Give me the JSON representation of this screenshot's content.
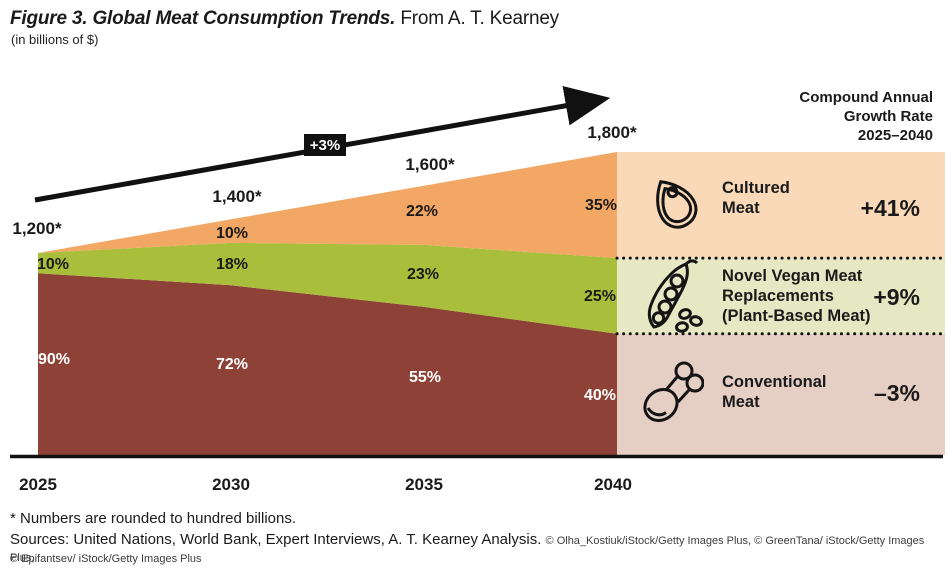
{
  "figure": {
    "title_bold": "Figure 3. Global Meat Consumption Trends.",
    "title_regular": "From A. T. Kearney",
    "subtitle": "(in billions of $)",
    "footnote": "* Numbers are rounded to hundred billions.",
    "sources_main": "Sources: United Nations, World Bank, Expert Interviews, A. T. Kearney Analysis.",
    "sources_credits1": "© Olha_Kostiuk/iStock/Getty Images Plus, © GreenTana/ iStock/Getty Images Plus,",
    "sources_credits2": "© Epifantsev/ iStock/Getty Images Plus"
  },
  "legend": {
    "header": "Compound Annual\nGrowth Rate\n2025–2040",
    "rows": [
      {
        "icon": "cultured-meat-icon",
        "label": "Cultured\nMeat",
        "cagr": "+41%",
        "bg": "#F9D9B8"
      },
      {
        "icon": "soybean-pod-icon",
        "label": "Novel Vegan Meat\nReplacements\n(Plant-Based Meat)",
        "cagr": "+9%",
        "bg": "#E5E8C2"
      },
      {
        "icon": "drumstick-icon",
        "label": "Conventional\nMeat",
        "cagr": "–3%",
        "bg": "#E5CFC4"
      }
    ]
  },
  "chart_data": {
    "type": "area",
    "stacked": true,
    "title": "Global Meat Consumption Trends",
    "unit": "billions of $",
    "x_labels": [
      "2025",
      "2030",
      "2035",
      "2040"
    ],
    "totals_values": [
      1200,
      1400,
      1600,
      1800
    ],
    "totals_labels": [
      "1,200*",
      "1,400*",
      "1,600*",
      "1,800*"
    ],
    "overall_growth_label": "+3%",
    "legend_position": "right",
    "series": [
      {
        "name": "Conventional Meat",
        "color": "#8E4136",
        "panel_color": "#E5CFC4",
        "share_percent": [
          90,
          72,
          55,
          40
        ],
        "share_labels": [
          "90%",
          "72%",
          "55%",
          "40%"
        ],
        "cagr_2025_2040": "-3%"
      },
      {
        "name": "Novel Vegan Meat Replacements (Plant-Based Meat)",
        "color": "#A9BE3B",
        "panel_color": "#E5E8C2",
        "share_percent": [
          10,
          18,
          23,
          25
        ],
        "share_labels": [
          "10%",
          "18%",
          "23%",
          "25%"
        ],
        "cagr_2025_2040": "+9%"
      },
      {
        "name": "Cultured Meat",
        "color": "#F2A765",
        "panel_color": "#F9D9B8",
        "share_percent": [
          0,
          10,
          22,
          35
        ],
        "share_labels": [
          "",
          "10%",
          "22%",
          "35%"
        ],
        "cagr_2025_2040": "+41%"
      }
    ]
  }
}
